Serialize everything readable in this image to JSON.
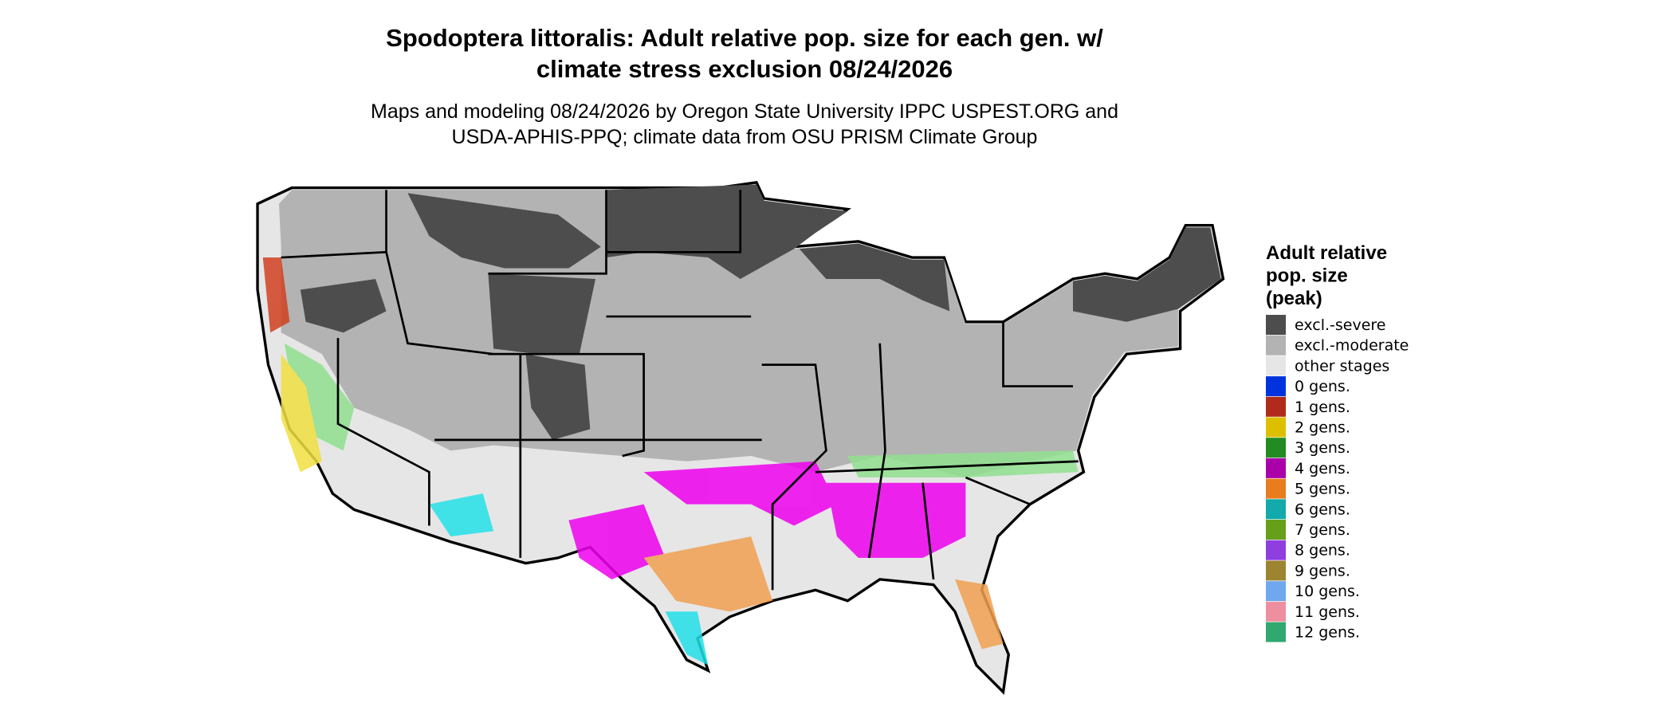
{
  "title_lines": [
    "Spodoptera littoralis: Adult relative pop. size for each gen. w/",
    "climate stress exclusion 08/24/2026"
  ],
  "subtitle_lines": [
    "Maps and modeling 08/24/2026 by Oregon State University IPPC USPEST.ORG and",
    "USDA-APHIS-PPQ; climate data from OSU PRISM Climate Group"
  ],
  "legend": {
    "title_lines": [
      "Adult relative",
      "pop. size",
      "(peak)"
    ],
    "items": [
      {
        "label": "excl.-severe",
        "color": "#4d4d4d"
      },
      {
        "label": "excl.-moderate",
        "color": "#b3b3b3"
      },
      {
        "label": "other stages",
        "color": "#e6e6e6"
      },
      {
        "label": "0 gens.",
        "color": "#0033dd"
      },
      {
        "label": "1 gens.",
        "color": "#b22a1a"
      },
      {
        "label": "2 gens.",
        "color": "#dcc000"
      },
      {
        "label": "3 gens.",
        "color": "#228b22"
      },
      {
        "label": "4 gens.",
        "color": "#aa00aa"
      },
      {
        "label": "5 gens.",
        "color": "#e87d1e"
      },
      {
        "label": "6 gens.",
        "color": "#12aaaa"
      },
      {
        "label": "7 gens.",
        "color": "#66a019"
      },
      {
        "label": "8 gens.",
        "color": "#8f3fe0"
      },
      {
        "label": "9 gens.",
        "color": "#9c8430"
      },
      {
        "label": "10 gens.",
        "color": "#6fa8ee"
      },
      {
        "label": "11 gens.",
        "color": "#ee8fa0"
      },
      {
        "label": "12 gens.",
        "color": "#30a870"
      }
    ]
  }
}
